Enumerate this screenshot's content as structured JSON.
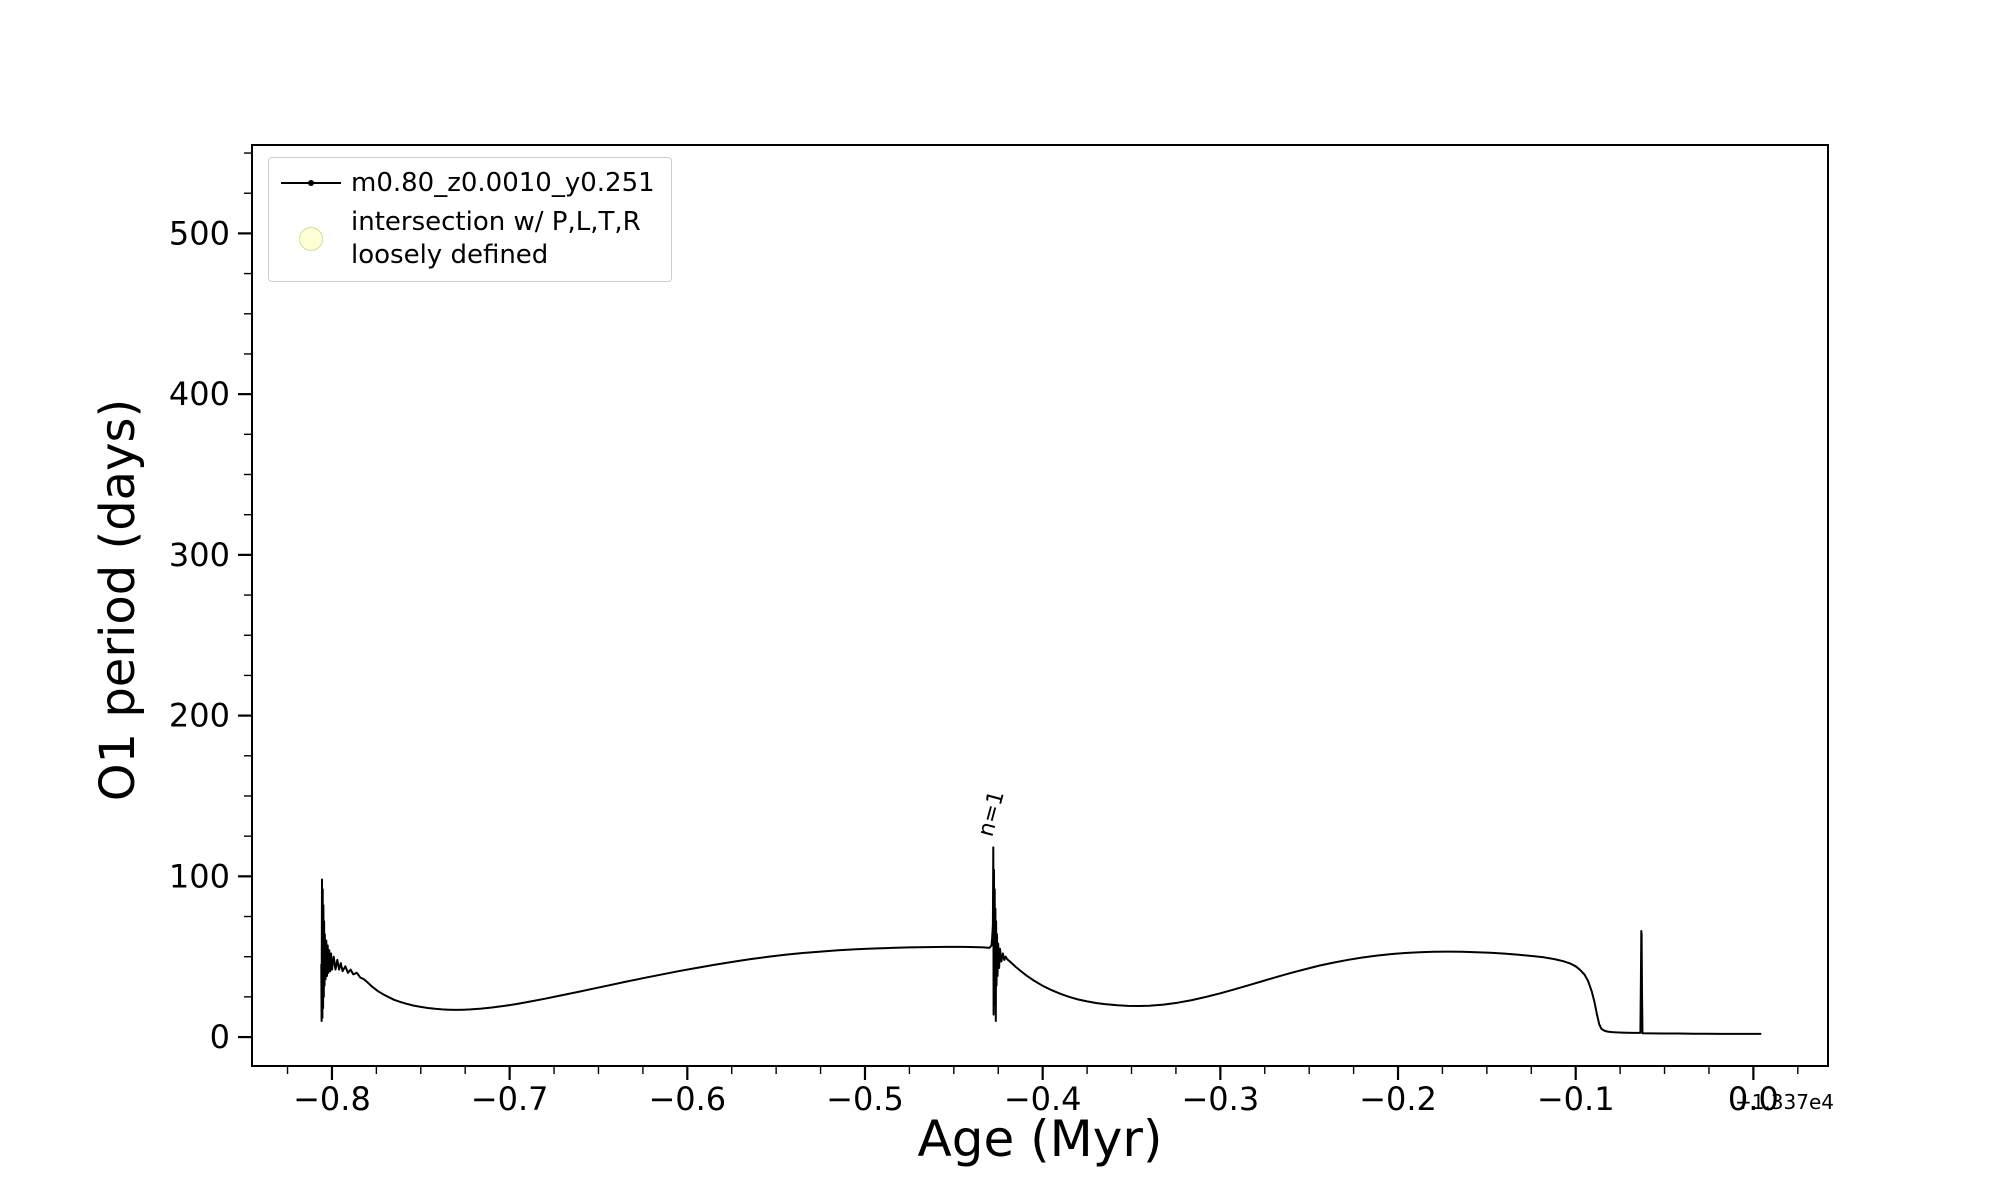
{
  "chart_data": {
    "type": "line",
    "title": "",
    "xlabel": "Age (Myr)",
    "ylabel": "O1 period (days)",
    "x_offset_text": "+1.337e4",
    "grid": false,
    "background_color": "#ffffff",
    "line_color": "#000000",
    "xlim": [
      -0.845,
      0.042
    ],
    "ylim": [
      -18,
      555
    ],
    "xticks": [
      -0.8,
      -0.7,
      -0.6,
      -0.5,
      -0.4,
      -0.3,
      -0.2,
      -0.1,
      0.0
    ],
    "xtick_labels": [
      "−0.8",
      "−0.7",
      "−0.6",
      "−0.5",
      "−0.4",
      "−0.3",
      "−0.2",
      "−0.1",
      "0.0"
    ],
    "yticks": [
      0,
      100,
      200,
      300,
      400,
      500
    ],
    "ytick_labels": [
      "0",
      "100",
      "200",
      "300",
      "400",
      "500"
    ],
    "x_minor_step": 0.025,
    "y_minor_step": 25,
    "legend": {
      "position": "upper left",
      "entries": [
        {
          "type": "line-with-dot-marker",
          "color": "#000000",
          "label": "m0.80_z0.0010_y0.251"
        },
        {
          "type": "circle-marker",
          "color": "#ffffb3",
          "edge_color": "#d8d896",
          "label_line1": "intersection w/ P,L,T,R",
          "label_line2": "loosely defined"
        }
      ]
    },
    "annotation": {
      "text": "n=1",
      "x": -0.4285,
      "y": 124,
      "rotation_deg": -75
    },
    "series": [
      {
        "name": "m0.80_z0.0010_y0.251",
        "color": "#000000",
        "points": [
          [
            -0.806,
            45
          ],
          [
            -0.8058,
            10
          ],
          [
            -0.8056,
            98
          ],
          [
            -0.8054,
            12
          ],
          [
            -0.8052,
            92
          ],
          [
            -0.805,
            18
          ],
          [
            -0.8048,
            82
          ],
          [
            -0.8046,
            25
          ],
          [
            -0.8044,
            72
          ],
          [
            -0.8042,
            32
          ],
          [
            -0.804,
            64
          ],
          [
            -0.8036,
            36
          ],
          [
            -0.8032,
            60
          ],
          [
            -0.8028,
            38
          ],
          [
            -0.8024,
            57
          ],
          [
            -0.802,
            40
          ],
          [
            -0.8015,
            54
          ],
          [
            -0.801,
            41
          ],
          [
            -0.8005,
            52
          ],
          [
            -0.8,
            42
          ],
          [
            -0.799,
            50
          ],
          [
            -0.798,
            42
          ],
          [
            -0.797,
            48
          ],
          [
            -0.796,
            42
          ],
          [
            -0.795,
            46
          ],
          [
            -0.794,
            41
          ],
          [
            -0.7925,
            44
          ],
          [
            -0.791,
            40
          ],
          [
            -0.7895,
            42
          ],
          [
            -0.788,
            39
          ],
          [
            -0.786,
            40
          ],
          [
            -0.784,
            37
          ],
          [
            -0.782,
            36
          ],
          [
            -0.78,
            34
          ],
          [
            -0.777,
            31
          ],
          [
            -0.774,
            28.5
          ],
          [
            -0.771,
            26.5
          ],
          [
            -0.768,
            24.8
          ],
          [
            -0.765,
            23.2
          ],
          [
            -0.762,
            22
          ],
          [
            -0.758,
            20.7
          ],
          [
            -0.754,
            19.6
          ],
          [
            -0.75,
            18.8
          ],
          [
            -0.746,
            18.1
          ],
          [
            -0.742,
            17.6
          ],
          [
            -0.738,
            17.2
          ],
          [
            -0.734,
            17
          ],
          [
            -0.73,
            16.9
          ],
          [
            -0.726,
            17
          ],
          [
            -0.722,
            17.2
          ],
          [
            -0.716,
            17.7
          ],
          [
            -0.71,
            18.4
          ],
          [
            -0.703,
            19.4
          ],
          [
            -0.696,
            20.6
          ],
          [
            -0.688,
            22.2
          ],
          [
            -0.68,
            23.9
          ],
          [
            -0.671,
            25.9
          ],
          [
            -0.662,
            28
          ],
          [
            -0.653,
            30.1
          ],
          [
            -0.644,
            32.2
          ],
          [
            -0.635,
            34.3
          ],
          [
            -0.625,
            36.6
          ],
          [
            -0.615,
            38.8
          ],
          [
            -0.605,
            41
          ],
          [
            -0.595,
            43
          ],
          [
            -0.585,
            44.9
          ],
          [
            -0.575,
            46.7
          ],
          [
            -0.565,
            48.4
          ],
          [
            -0.555,
            49.9
          ],
          [
            -0.545,
            51.2
          ],
          [
            -0.535,
            52.3
          ],
          [
            -0.525,
            53.2
          ],
          [
            -0.515,
            54
          ],
          [
            -0.505,
            54.6
          ],
          [
            -0.495,
            55.1
          ],
          [
            -0.485,
            55.5
          ],
          [
            -0.475,
            55.8
          ],
          [
            -0.465,
            56
          ],
          [
            -0.455,
            56.1
          ],
          [
            -0.445,
            56.1
          ],
          [
            -0.438,
            56
          ],
          [
            -0.433,
            55.8
          ],
          [
            -0.43,
            55.5
          ],
          [
            -0.4288,
            57
          ],
          [
            -0.4284,
            62
          ],
          [
            -0.428,
            70
          ],
          [
            -0.4278,
            118
          ],
          [
            -0.4276,
            14
          ],
          [
            -0.4274,
            104
          ],
          [
            -0.4272,
            20
          ],
          [
            -0.427,
            92
          ],
          [
            -0.4268,
            26
          ],
          [
            -0.4266,
            80
          ],
          [
            -0.4264,
            10
          ],
          [
            -0.4262,
            72
          ],
          [
            -0.426,
            32
          ],
          [
            -0.4257,
            64
          ],
          [
            -0.4254,
            38
          ],
          [
            -0.425,
            58
          ],
          [
            -0.4245,
            43
          ],
          [
            -0.424,
            55
          ],
          [
            -0.4232,
            47
          ],
          [
            -0.4224,
            52
          ],
          [
            -0.4216,
            48
          ],
          [
            -0.4208,
            50
          ],
          [
            -0.42,
            48.5
          ],
          [
            -0.418,
            46.5
          ],
          [
            -0.415,
            43.5
          ],
          [
            -0.412,
            40.8
          ],
          [
            -0.409,
            38.2
          ],
          [
            -0.405,
            35.2
          ],
          [
            -0.4,
            31.9
          ],
          [
            -0.395,
            29.2
          ],
          [
            -0.39,
            26.9
          ],
          [
            -0.385,
            25
          ],
          [
            -0.38,
            23.4
          ],
          [
            -0.375,
            22.2
          ],
          [
            -0.37,
            21.2
          ],
          [
            -0.365,
            20.5
          ],
          [
            -0.358,
            19.8
          ],
          [
            -0.352,
            19.4
          ],
          [
            -0.346,
            19.3
          ],
          [
            -0.34,
            19.5
          ],
          [
            -0.332,
            20.2
          ],
          [
            -0.324,
            21.4
          ],
          [
            -0.316,
            23
          ],
          [
            -0.308,
            25
          ],
          [
            -0.3,
            27.2
          ],
          [
            -0.292,
            29.7
          ],
          [
            -0.284,
            32.3
          ],
          [
            -0.276,
            34.9
          ],
          [
            -0.268,
            37.5
          ],
          [
            -0.26,
            40
          ],
          [
            -0.252,
            42.3
          ],
          [
            -0.244,
            44.5
          ],
          [
            -0.236,
            46.4
          ],
          [
            -0.228,
            48.1
          ],
          [
            -0.22,
            49.5
          ],
          [
            -0.212,
            50.7
          ],
          [
            -0.204,
            51.6
          ],
          [
            -0.196,
            52.3
          ],
          [
            -0.188,
            52.8
          ],
          [
            -0.18,
            53.1
          ],
          [
            -0.172,
            53.2
          ],
          [
            -0.164,
            53.1
          ],
          [
            -0.156,
            52.8
          ],
          [
            -0.148,
            52.4
          ],
          [
            -0.14,
            51.9
          ],
          [
            -0.132,
            51.2
          ],
          [
            -0.124,
            50.4
          ],
          [
            -0.118,
            49.6
          ],
          [
            -0.112,
            48.5
          ],
          [
            -0.107,
            47.2
          ],
          [
            -0.103,
            45.7
          ],
          [
            -0.1,
            44
          ],
          [
            -0.0975,
            41.8
          ],
          [
            -0.095,
            38.8
          ],
          [
            -0.093,
            34.8
          ],
          [
            -0.091,
            28.5
          ],
          [
            -0.0895,
            22
          ],
          [
            -0.088,
            14
          ],
          [
            -0.0868,
            8
          ],
          [
            -0.0856,
            5.2
          ],
          [
            -0.084,
            4
          ],
          [
            -0.082,
            3.4
          ],
          [
            -0.0795,
            3.1
          ],
          [
            -0.077,
            2.9
          ],
          [
            -0.074,
            2.8
          ],
          [
            -0.071,
            2.7
          ],
          [
            -0.068,
            2.6
          ],
          [
            -0.065,
            2.6
          ],
          [
            -0.0636,
            2.6
          ],
          [
            -0.0633,
            35
          ],
          [
            -0.0631,
            66
          ],
          [
            -0.0629,
            64
          ],
          [
            -0.0627,
            28
          ],
          [
            -0.0624,
            2.4
          ],
          [
            -0.058,
            2.3
          ],
          [
            -0.05,
            2.2
          ],
          [
            -0.042,
            2.2
          ],
          [
            -0.034,
            2.1
          ],
          [
            -0.026,
            2.1
          ],
          [
            -0.018,
            2
          ],
          [
            -0.01,
            2
          ],
          [
            -0.002,
            2
          ],
          [
            0.004,
            2
          ]
        ]
      }
    ]
  }
}
